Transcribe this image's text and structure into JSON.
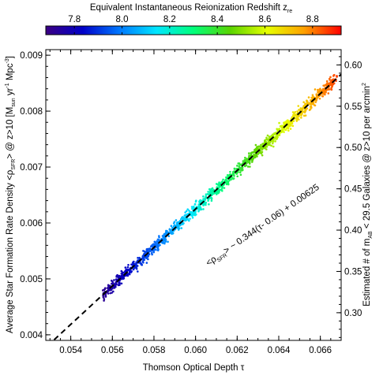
{
  "chart_data": {
    "type": "scatter",
    "title": "",
    "colorbar": {
      "label": "Equivalent Instantaneous Reionization Redshift z",
      "label_sup": "re",
      "range": [
        7.68,
        8.92
      ],
      "ticks": [
        "7.8",
        "8.0",
        "8.2",
        "8.4",
        "8.6",
        "8.8"
      ],
      "colormap": [
        "#3b0083",
        "#0000c8",
        "#0078ff",
        "#00e6ff",
        "#00ff7a",
        "#5ad400",
        "#e6ff00",
        "#ffa000",
        "#ff0000"
      ]
    },
    "xaxis": {
      "label": "Thomson Optical Depth τ",
      "range": [
        0.0528,
        0.067
      ],
      "ticks": [
        "0.054",
        "0.056",
        "0.058",
        "0.060",
        "0.062",
        "0.064",
        "0.066"
      ]
    },
    "yaxis_left": {
      "label_pre": "Average Star Formation Rate Density <ρ",
      "label_sub1": "SFR",
      "label_mid": "> @ z>10 [M",
      "label_sub2": "sun",
      "label_mid2": " yr",
      "label_sup1": "-1",
      "label_mid3": " Mpc",
      "label_sup2": "-3",
      "label_end": "]",
      "range": [
        0.0039,
        0.0091
      ],
      "ticks": [
        "0.004",
        "0.005",
        "0.006",
        "0.007",
        "0.008",
        "0.009"
      ]
    },
    "yaxis_right": {
      "label_pre": "Estimated # of m",
      "label_sub": "AB",
      "label_post": " < 29.5 Galaxies @ z>10 per arcmin",
      "label_sup": "2",
      "range": [
        0.2665,
        0.6185
      ],
      "ticks": [
        "0.30",
        "0.35",
        "0.40",
        "0.45",
        "0.50",
        "0.55",
        "0.60"
      ]
    },
    "fit": {
      "slope": 0.344,
      "tau0": 0.06,
      "intercept": 0.00625,
      "style": "dashed",
      "label_pre": "<ρ",
      "label_sub": "SFR",
      "label_post": "> ~ 0.344(τ- 0.06) + 0.00625"
    },
    "scatter": {
      "x_range": [
        0.0553,
        0.0668
      ],
      "z_range": [
        7.69,
        8.86
      ],
      "jitter": 5e-05,
      "count": 1400
    },
    "grid": false,
    "legend": "none"
  }
}
